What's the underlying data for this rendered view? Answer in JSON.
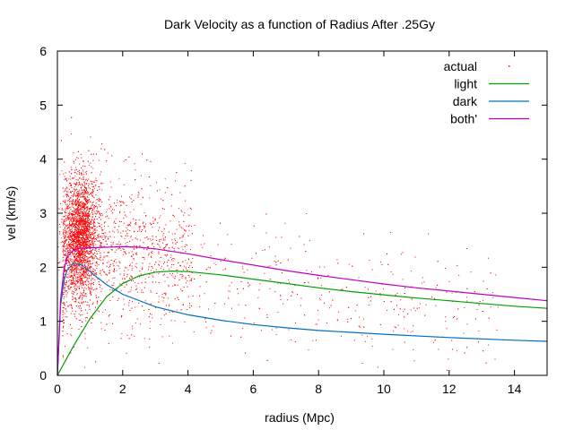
{
  "chart_data": {
    "type": "scatter",
    "title": "Dark Velocity as a function of Radius After .25Gy",
    "xlabel": "radius (Mpc)",
    "ylabel": "vel (km/s)",
    "xlim": [
      0,
      15
    ],
    "ylim": [
      0,
      6
    ],
    "x_ticks": [
      0,
      2,
      4,
      6,
      8,
      10,
      12,
      14
    ],
    "y_ticks": [
      0,
      1,
      2,
      3,
      4,
      5,
      6
    ],
    "grid": false,
    "legend_position": "top-right",
    "scatter_sampling": {
      "description_of_cloud": "dense cluster near radius 0.3-1.5, velocity 1-4; sparse spread out to radius ~13",
      "dense_center": [
        0.7,
        2.6
      ],
      "n_points": 5000
    },
    "series": [
      {
        "name": "actual",
        "kind": "points",
        "color": "#ff0000",
        "approx_points": [
          [
            0.3,
            2.5
          ],
          [
            0.5,
            3.2
          ],
          [
            0.7,
            2.6
          ],
          [
            0.9,
            2.1
          ],
          [
            1.2,
            3.0
          ],
          [
            1.5,
            1.5
          ],
          [
            2.0,
            2.6
          ],
          [
            2.5,
            2.0
          ],
          [
            3.0,
            1.6
          ],
          [
            4.0,
            2.2
          ],
          [
            5.0,
            1.5
          ],
          [
            6.0,
            1.8
          ],
          [
            7.0,
            1.2
          ],
          [
            8.0,
            1.1
          ],
          [
            9.0,
            0.9
          ],
          [
            10.0,
            1.0
          ],
          [
            12.0,
            0.8
          ],
          [
            13.0,
            0.9
          ]
        ]
      },
      {
        "name": "light",
        "kind": "line",
        "color": "#00a000",
        "x": [
          0,
          0.5,
          1,
          1.5,
          2,
          2.5,
          3,
          3.5,
          4,
          5,
          6,
          7,
          8,
          9,
          10,
          11,
          12,
          13,
          14,
          15
        ],
        "y": [
          0,
          0.55,
          1.05,
          1.45,
          1.7,
          1.84,
          1.91,
          1.93,
          1.92,
          1.86,
          1.78,
          1.7,
          1.62,
          1.55,
          1.49,
          1.43,
          1.38,
          1.33,
          1.28,
          1.24
        ]
      },
      {
        "name": "dark",
        "kind": "line",
        "color": "#0070c0",
        "x": [
          0,
          0.1,
          0.2,
          0.3,
          0.5,
          0.7,
          0.9,
          1.2,
          1.5,
          2,
          3,
          4,
          5,
          6,
          7,
          8,
          10,
          12,
          14,
          15
        ],
        "y": [
          0,
          1.3,
          1.75,
          1.95,
          2.08,
          2.05,
          1.97,
          1.82,
          1.68,
          1.5,
          1.27,
          1.12,
          1.02,
          0.94,
          0.88,
          0.83,
          0.76,
          0.7,
          0.65,
          0.63
        ]
      },
      {
        "name": "both'",
        "kind": "line",
        "color": "#c000c0",
        "x": [
          0,
          0.1,
          0.2,
          0.3,
          0.5,
          0.7,
          1,
          1.5,
          2,
          2.5,
          3,
          4,
          5,
          6,
          7,
          8,
          9,
          10,
          11,
          12,
          13,
          14,
          15
        ],
        "y": [
          0,
          1.4,
          1.95,
          2.2,
          2.32,
          2.35,
          2.36,
          2.37,
          2.38,
          2.37,
          2.34,
          2.25,
          2.14,
          2.04,
          1.94,
          1.85,
          1.77,
          1.69,
          1.62,
          1.56,
          1.5,
          1.44,
          1.38
        ]
      }
    ]
  }
}
